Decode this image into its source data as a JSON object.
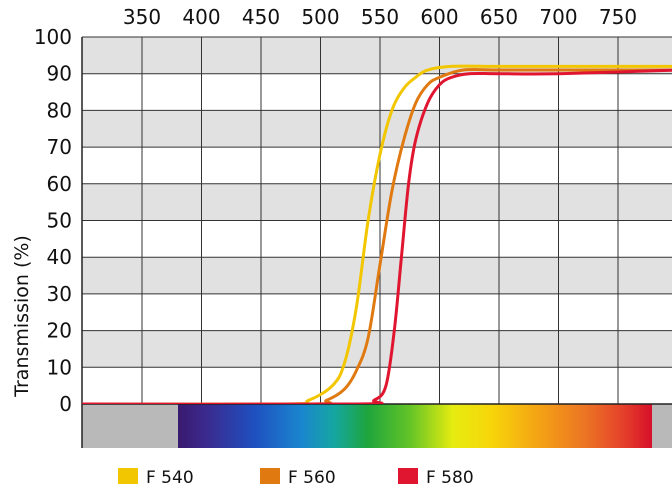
{
  "chart_data": {
    "type": "line",
    "title": "",
    "xlabel": "",
    "ylabel": "Transmission (%)",
    "x_ticks": [
      350,
      400,
      450,
      500,
      550,
      600,
      650,
      700,
      750
    ],
    "y_ticks": [
      0,
      10,
      20,
      30,
      40,
      50,
      60,
      70,
      80,
      90,
      100
    ],
    "xlim": [
      300,
      800
    ],
    "ylim": [
      0,
      100
    ],
    "grid": true,
    "legend_position": "bottom",
    "series": [
      {
        "name": "F 540",
        "color": "#f2c600",
        "x": [
          300,
          470,
          490,
          510,
          520,
          530,
          540,
          550,
          560,
          570,
          580,
          590,
          610,
          650,
          700,
          800
        ],
        "y": [
          0,
          0,
          1,
          5,
          11,
          26,
          50,
          68,
          80,
          86,
          89,
          91,
          92,
          92,
          92,
          92
        ]
      },
      {
        "name": "F 560",
        "color": "#e07a10",
        "x": [
          300,
          490,
          505,
          520,
          530,
          540,
          550,
          560,
          570,
          580,
          590,
          600,
          620,
          650,
          700,
          800
        ],
        "y": [
          0,
          0,
          1,
          4,
          9,
          18,
          38,
          58,
          72,
          82,
          87,
          89,
          91,
          91,
          91,
          91
        ]
      },
      {
        "name": "F 580",
        "color": "#e01530",
        "x": [
          300,
          530,
          545,
          555,
          562,
          568,
          574,
          580,
          590,
          600,
          610,
          625,
          650,
          700,
          800
        ],
        "y": [
          0,
          0,
          1,
          5,
          20,
          40,
          60,
          72,
          82,
          87,
          89,
          90,
          90,
          90,
          91
        ]
      }
    ]
  }
}
